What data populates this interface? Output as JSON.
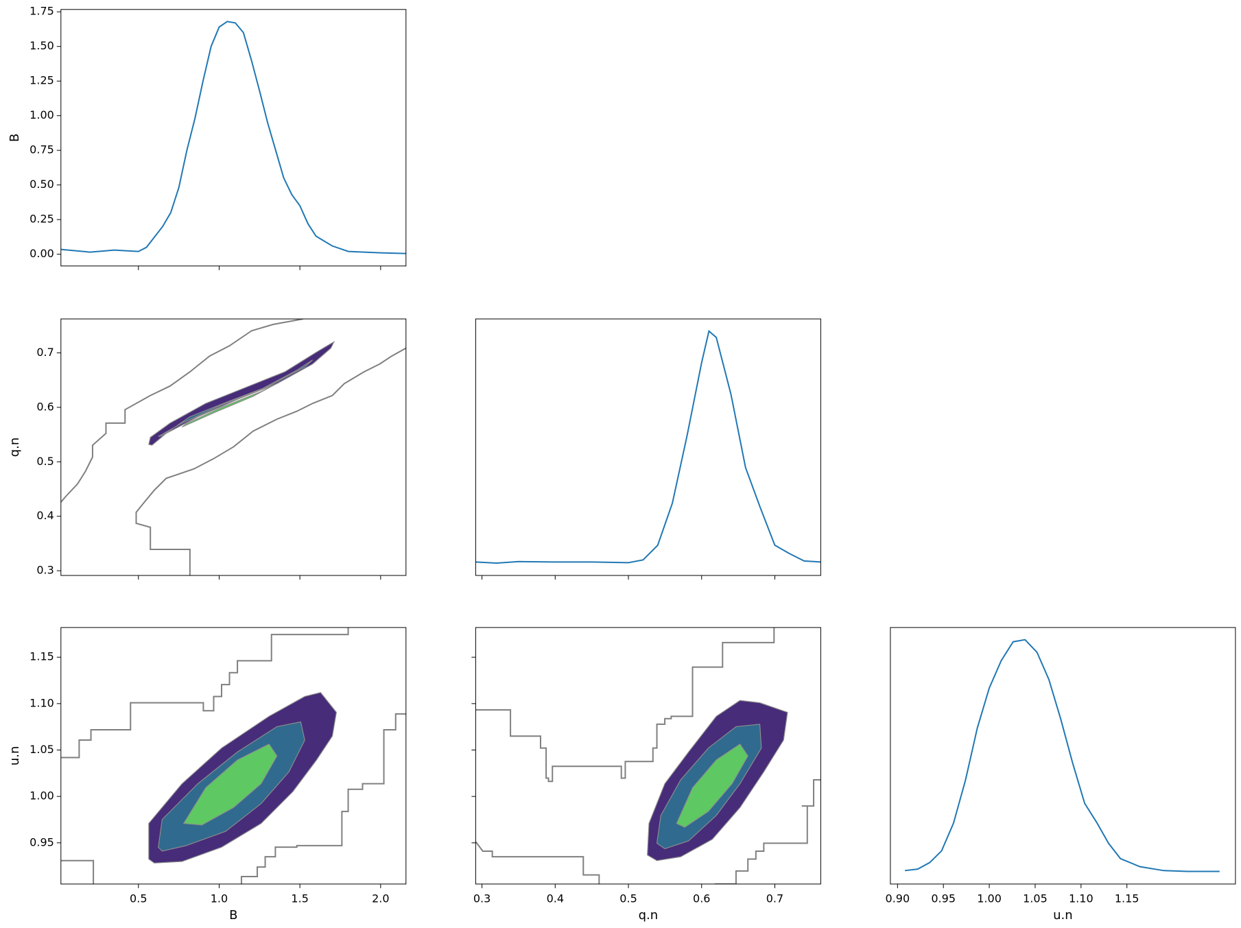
{
  "chart_data": [
    {
      "type": "kde",
      "ylabel": "B",
      "color": "#1f77b4",
      "xlim": [
        0.02,
        2.157
      ],
      "ylim": [
        -0.085,
        1.767
      ],
      "yticks": [
        {
          "value": 0,
          "label": "0.00"
        },
        0.25,
        {
          "value": 0.5,
          "label": "0.50"
        },
        0.75,
        {
          "value": 1,
          "label": "1.00"
        },
        1.25,
        {
          "value": 1.5,
          "label": "1.50"
        },
        1.75
      ],
      "x": [
        0.02,
        0.2,
        0.35,
        0.5,
        0.55,
        0.65,
        0.7,
        0.75,
        0.8,
        0.85,
        0.9,
        0.95,
        1.0,
        1.05,
        1.1,
        1.15,
        1.2,
        1.25,
        1.3,
        1.35,
        1.4,
        1.45,
        1.5,
        1.55,
        1.6,
        1.7,
        1.8,
        2.0,
        2.157
      ],
      "y": [
        0.035,
        0.015,
        0.03,
        0.02,
        0.05,
        0.2,
        0.3,
        0.48,
        0.75,
        0.98,
        1.25,
        1.5,
        1.64,
        1.68,
        1.67,
        1.6,
        1.4,
        1.18,
        0.95,
        0.75,
        0.55,
        0.43,
        0.35,
        0.22,
        0.13,
        0.06,
        0.02,
        0.01,
        0.005
      ]
    },
    {
      "type": "contour",
      "ylabel": "q.n",
      "xlim": [
        0.02,
        2.157
      ],
      "ylim": [
        0.2913,
        0.7623
      ],
      "yticks": [
        0.3,
        0.4,
        0.5,
        0.6,
        0.7
      ],
      "fills": [
        {
          "color": "#472c7a",
          "x": [
            0.564,
            0.574,
            0.696,
            0.917,
            1.162,
            1.407,
            1.603,
            1.711,
            1.692,
            1.579,
            1.358,
            1.113,
            0.868,
            0.672,
            0.584
          ],
          "y": [
            0.5319,
            0.5449,
            0.571,
            0.6072,
            0.6362,
            0.6652,
            0.7014,
            0.7203,
            0.7087,
            0.6797,
            0.6435,
            0.6145,
            0.5826,
            0.5522,
            0.5304
          ]
        },
        {
          "color": "#306a8e",
          "x": [
            0.623,
            0.77,
            1.015,
            1.26,
            1.481,
            1.579,
            1.53,
            1.309,
            1.064,
            0.819,
            0.647
          ],
          "y": [
            0.5464,
            0.571,
            0.6043,
            0.6333,
            0.6681,
            0.687,
            0.6739,
            0.6391,
            0.6116,
            0.5826,
            0.5478
          ]
        },
        {
          "color": "#5ec962",
          "x": [
            0.77,
            0.966,
            1.211,
            1.383,
            1.26,
            1.015,
            0.795
          ],
          "y": [
            0.5638,
            0.5899,
            0.6203,
            0.6478,
            0.629,
            0.6,
            0.5696
          ]
        }
      ],
      "lines": [
        {
          "color": "#7f7f7f",
          "x": [
            0.02,
            0.054,
            0.123,
            0.172,
            0.216,
            0.216,
            0.299,
            0.299,
            0.417,
            0.417,
            0.574,
            0.696,
            0.819,
            0.941,
            1.064,
            1.201,
            1.334,
            1.52
          ],
          "y": [
            0.426,
            0.4377,
            0.4594,
            0.4826,
            0.5087,
            0.5304,
            0.5522,
            0.571,
            0.571,
            0.5957,
            0.6217,
            0.6391,
            0.6652,
            0.6942,
            0.713,
            0.7406,
            0.7522,
            0.7623
          ]
        },
        {
          "color": "#7f7f7f",
          "x": [
            2.157,
            2.069,
            1.995,
            1.897,
            1.775,
            1.701,
            1.579,
            1.481,
            1.358,
            1.211,
            1.089,
            0.966,
            0.844,
            0.672,
            0.598,
            0.525,
            0.486,
            0.486,
            0.574,
            0.574,
            0.819,
            0.819
          ],
          "y": [
            0.7087,
            0.6942,
            0.6797,
            0.6652,
            0.6435,
            0.6217,
            0.6072,
            0.5928,
            0.5783,
            0.5565,
            0.5275,
            0.5058,
            0.487,
            0.4696,
            0.4478,
            0.4217,
            0.4072,
            0.387,
            0.3797,
            0.3391,
            0.3391,
            0.2913
          ]
        }
      ]
    },
    {
      "type": "kde",
      "color": "#1f77b4",
      "xlim": [
        0.2914,
        0.7627
      ],
      "ylim": [
        -0.64,
        11.58
      ],
      "x": [
        0.291,
        0.32,
        0.35,
        0.4,
        0.45,
        0.5,
        0.52,
        0.54,
        0.56,
        0.58,
        0.6,
        0.61,
        0.62,
        0.64,
        0.66,
        0.68,
        0.7,
        0.72,
        0.74,
        0.763
      ],
      "y": [
        0.0,
        -0.05,
        0.02,
        0.0,
        0.0,
        -0.03,
        0.1,
        0.8,
        2.8,
        6.0,
        9.5,
        11.0,
        10.7,
        8.0,
        4.5,
        2.6,
        0.8,
        0.4,
        0.05,
        0.0
      ]
    },
    {
      "type": "contour",
      "ylabel": "u.n",
      "xlabel": "B",
      "xlim": [
        0.02,
        2.157
      ],
      "ylim": [
        0.9056,
        1.182
      ],
      "xticks": [
        0.5,
        {
          "value": 1,
          "label": "1.0"
        },
        1.5,
        {
          "value": 2,
          "label": "2.0"
        }
      ],
      "yticks": [
        0.95,
        {
          "value": 1,
          "label": "1.00"
        },
        1.05,
        {
          "value": 1.1,
          "label": "1.10"
        },
        1.15
      ],
      "fills": [
        {
          "color": "#472c7a",
          "x": [
            0.564,
            0.564,
            0.77,
            1.015,
            1.309,
            1.53,
            1.628,
            1.726,
            1.701,
            1.603,
            1.456,
            1.26,
            1.015,
            0.77,
            0.598
          ],
          "y": [
            0.9325,
            0.9709,
            1.0137,
            1.0521,
            1.0863,
            1.1077,
            1.112,
            1.0906,
            1.065,
            1.0393,
            1.0051,
            0.9709,
            0.9453,
            0.9299,
            0.9282
          ]
        },
        {
          "color": "#306a8e",
          "x": [
            0.623,
            0.647,
            0.868,
            1.113,
            1.358,
            1.505,
            1.53,
            1.432,
            1.26,
            1.04,
            0.795,
            0.647
          ],
          "y": [
            0.9453,
            0.9752,
            1.0137,
            1.0479,
            1.0752,
            1.0803,
            1.0607,
            1.0265,
            0.9923,
            0.9624,
            0.947,
            0.941
          ]
        },
        {
          "color": "#5ec962",
          "x": [
            0.78,
            0.917,
            1.113,
            1.309,
            1.358,
            1.26,
            1.089,
            0.893
          ],
          "y": [
            0.9709,
            1.0094,
            1.0393,
            1.0564,
            1.0436,
            1.0137,
            0.988,
            0.9692
          ]
        }
      ],
      "lines": [
        {
          "color": "#7f7f7f",
          "x": [
            0.02,
            0.133,
            0.133,
            0.206,
            0.206,
            0.451,
            0.451,
            0.902,
            0.902,
            0.966,
            0.966,
            1.015,
            1.015,
            1.064,
            1.064,
            1.113,
            1.113,
            1.324,
            1.324,
            1.799,
            1.799
          ],
          "y": [
            1.0419,
            1.0419,
            1.0607,
            1.0607,
            1.0718,
            1.0718,
            1.1009,
            1.1009,
            1.0923,
            1.0923,
            1.1077,
            1.1077,
            1.1205,
            1.1205,
            1.1333,
            1.1333,
            1.1462,
            1.1462,
            1.1744,
            1.1744,
            1.182
          ]
        },
        {
          "color": "#7f7f7f",
          "x": [
            2.157,
            2.093,
            2.093,
            2.02,
            2.02,
            1.888,
            1.888,
            1.799,
            1.799,
            1.76,
            1.76,
            1.481,
            1.481,
            1.348,
            1.348,
            1.285,
            1.285,
            1.236,
            1.236,
            1.138,
            1.138
          ],
          "y": [
            1.0889,
            1.0889,
            1.0718,
            1.0718,
            1.0137,
            1.0137,
            1.0077,
            1.0077,
            0.9838,
            0.9838,
            0.947,
            0.947,
            0.9453,
            0.9453,
            0.935,
            0.935,
            0.9239,
            0.9239,
            0.9137,
            0.9137,
            0.9056
          ]
        },
        {
          "color": "#7f7f7f",
          "x": [
            0.02,
            0.221,
            0.221
          ],
          "y": [
            0.9308,
            0.9308,
            0.9056
          ]
        }
      ]
    },
    {
      "type": "contour",
      "xlabel": "q.n",
      "xlim": [
        0.2914,
        0.7627
      ],
      "ylim": [
        0.9056,
        1.182
      ],
      "xticks": [
        0.3,
        0.4,
        0.5,
        0.6,
        0.7
      ],
      "fills": [
        {
          "color": "#472c7a",
          "x": [
            0.5259,
            0.5281,
            0.5497,
            0.5822,
            0.62,
            0.6524,
            0.6795,
            0.7173,
            0.7119,
            0.6849,
            0.6524,
            0.6146,
            0.5714,
            0.5389
          ],
          "y": [
            0.9368,
            0.9709,
            1.0137,
            1.0479,
            1.0863,
            1.1034,
            1.1009,
            1.0906,
            1.0607,
            1.0265,
            0.988,
            0.9538,
            0.935,
            0.9308
          ]
        },
        {
          "color": "#306a8e",
          "x": [
            0.5389,
            0.5443,
            0.5714,
            0.6092,
            0.647,
            0.6795,
            0.6816,
            0.6524,
            0.62,
            0.5822,
            0.5497
          ],
          "y": [
            0.9496,
            0.9795,
            1.0179,
            1.0521,
            1.0752,
            1.0778,
            1.0521,
            1.0137,
            0.9795,
            0.9521,
            0.9436
          ]
        },
        {
          "color": "#5ec962",
          "x": [
            0.5659,
            0.5876,
            0.62,
            0.6524,
            0.6632,
            0.6416,
            0.6092,
            0.5768
          ],
          "y": [
            0.9709,
            1.0094,
            1.0393,
            1.0564,
            1.0436,
            1.0137,
            0.9838,
            0.9667
          ]
        }
      ],
      "lines": [
        {
          "color": "#7f7f7f",
          "x": [
            0.2914,
            0.3389,
            0.3389,
            0.38,
            0.38,
            0.3876,
            0.3876,
            0.3908,
            0.3908,
            0.3962,
            0.3962,
            0.4903,
            0.4903,
            0.4957,
            0.4957,
            0.5335,
            0.5335,
            0.5389,
            0.5389,
            0.5497,
            0.5497,
            0.5584,
            0.5584,
            0.5876,
            0.5876,
            0.6286,
            0.6286,
            0.6989,
            0.6989
          ],
          "y": [
            1.0932,
            1.0932,
            1.065,
            1.065,
            1.0521,
            1.0521,
            1.0197,
            1.0197,
            1.0162,
            1.0162,
            1.0325,
            1.0325,
            1.0197,
            1.0197,
            1.0376,
            1.0376,
            1.0521,
            1.0521,
            1.0778,
            1.0778,
            1.0838,
            1.0838,
            1.0863,
            1.0863,
            1.1393,
            1.1393,
            1.1658,
            1.1658,
            1.182
          ]
        },
        {
          "color": "#7f7f7f",
          "x": [
            0.2914,
            0.3011,
            0.3141,
            0.3141,
            0.4384,
            0.4384,
            0.46,
            0.46
          ],
          "y": [
            0.9513,
            0.941,
            0.941,
            0.935,
            0.935,
            0.9154,
            0.9154,
            0.9056
          ]
        },
        {
          "color": "#7f7f7f",
          "x": [
            0.6178,
            0.647,
            0.647,
            0.6632,
            0.6632,
            0.6741,
            0.6741,
            0.6849,
            0.6849,
            0.7443,
            0.7443,
            0.7368,
            0.753,
            0.753,
            0.7627
          ],
          "y": [
            0.9056,
            0.9056,
            0.9197,
            0.9197,
            0.9325,
            0.9325,
            0.941,
            0.941,
            0.9496,
            0.9496,
            0.9897,
            0.9897,
            0.9897,
            1.0179,
            1.0179
          ]
        }
      ]
    },
    {
      "type": "kde",
      "xlabel": "u.n",
      "color": "#1f77b4",
      "xlim": [
        0.8922,
        1.2683
      ],
      "ylim": [
        -0.64,
        11.58
      ],
      "xticks": [
        {
          "value": 0.9,
          "label": "0.90"
        },
        0.95,
        {
          "value": 1,
          "label": "1.00"
        },
        1.05,
        {
          "value": 1.1,
          "label": "1.10"
        },
        1.15
      ],
      "x": [
        0.908,
        0.922,
        0.935,
        0.948,
        0.961,
        0.974,
        0.987,
        1.0,
        1.013,
        1.026,
        1.039,
        1.052,
        1.065,
        1.078,
        1.091,
        1.104,
        1.117,
        1.13,
        1.143,
        1.164,
        1.19,
        1.216,
        1.251
      ],
      "y": [
        0.0,
        0.07,
        0.38,
        0.94,
        2.26,
        4.3,
        6.8,
        8.7,
        10.0,
        10.9,
        11.0,
        10.4,
        9.1,
        7.2,
        5.1,
        3.2,
        2.3,
        1.3,
        0.57,
        0.19,
        0.0,
        -0.04,
        -0.04
      ]
    }
  ]
}
